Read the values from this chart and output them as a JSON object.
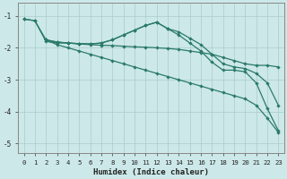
{
  "title": "",
  "xlabel": "Humidex (Indice chaleur)",
  "ylabel": "",
  "bg_color": "#cce8e8",
  "line_color": "#2a7a6a",
  "grid_color": "#aacccc",
  "xlim": [
    -0.5,
    23.5
  ],
  "ylim": [
    -5.3,
    -0.6
  ],
  "yticks": [
    -5,
    -4,
    -3,
    -2,
    -1
  ],
  "xticks": [
    0,
    1,
    2,
    3,
    4,
    5,
    6,
    7,
    8,
    9,
    10,
    11,
    12,
    13,
    14,
    15,
    16,
    17,
    18,
    19,
    20,
    21,
    22,
    23
  ],
  "series": [
    {
      "x": [
        0,
        1,
        2,
        3,
        4,
        5,
        6,
        7,
        8,
        9,
        10,
        11,
        12,
        13,
        14,
        15,
        16,
        17,
        18,
        19,
        20,
        21,
        22,
        23
      ],
      "y": [
        -1.1,
        -1.15,
        -1.8,
        -1.85,
        -1.85,
        -1.88,
        -1.9,
        -1.92,
        -1.93,
        -1.95,
        -1.97,
        -1.98,
        -2.0,
        -2.02,
        -2.05,
        -2.1,
        -2.15,
        -2.2,
        -2.3,
        -2.4,
        -2.5,
        -2.55,
        -2.55,
        -2.6
      ]
    },
    {
      "x": [
        0,
        1,
        2,
        3,
        4,
        5,
        6,
        7,
        8,
        9,
        10,
        11,
        12,
        13,
        14,
        15,
        16,
        17,
        18,
        19,
        20,
        21,
        22,
        23
      ],
      "y": [
        -1.1,
        -1.15,
        -1.75,
        -1.82,
        -1.85,
        -1.87,
        -1.88,
        -1.85,
        -1.75,
        -1.6,
        -1.45,
        -1.3,
        -1.2,
        -1.4,
        -1.5,
        -1.7,
        -1.9,
        -2.2,
        -2.5,
        -2.6,
        -2.65,
        -2.8,
        -3.1,
        -3.8
      ]
    },
    {
      "x": [
        2,
        3,
        4,
        5,
        6,
        7,
        8,
        9,
        10,
        11,
        12,
        13,
        14,
        15,
        16,
        17,
        18,
        19,
        20,
        21,
        22,
        23
      ],
      "y": [
        -1.75,
        -1.82,
        -1.85,
        -1.87,
        -1.88,
        -1.85,
        -1.75,
        -1.6,
        -1.45,
        -1.3,
        -1.2,
        -1.4,
        -1.6,
        -1.85,
        -2.1,
        -2.45,
        -2.7,
        -2.7,
        -2.75,
        -3.1,
        -3.9,
        -4.6
      ]
    },
    {
      "x": [
        2,
        3,
        4,
        5,
        6,
        7,
        8,
        9,
        10,
        11,
        12,
        13,
        14,
        15,
        16,
        17,
        18,
        19,
        20,
        21,
        22,
        23
      ],
      "y": [
        -1.75,
        -1.9,
        -2.0,
        -2.1,
        -2.2,
        -2.3,
        -2.4,
        -2.5,
        -2.6,
        -2.7,
        -2.8,
        -2.9,
        -3.0,
        -3.1,
        -3.2,
        -3.3,
        -3.4,
        -3.5,
        -3.6,
        -3.8,
        -4.2,
        -4.65
      ]
    }
  ]
}
